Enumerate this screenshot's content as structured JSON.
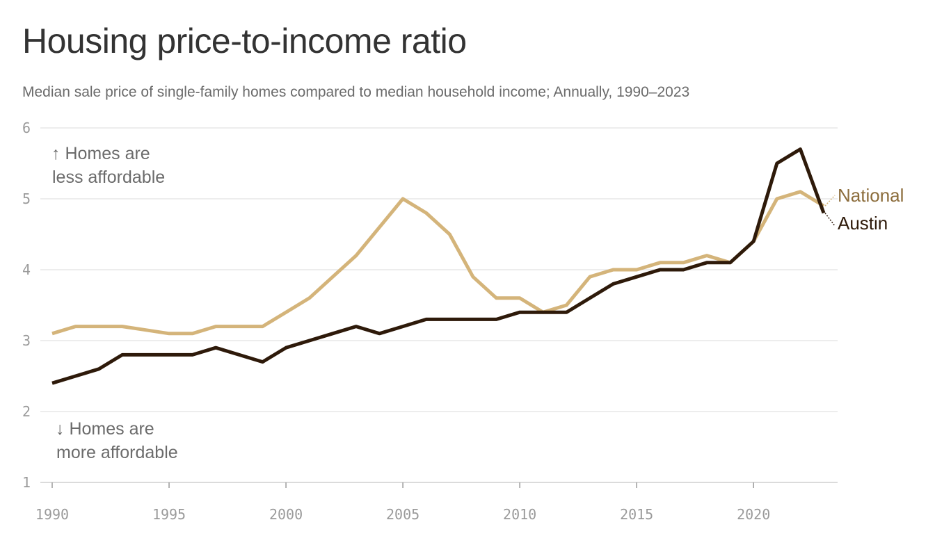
{
  "chart_data": {
    "type": "line",
    "title": "Housing price-to-income ratio",
    "subtitle": "Median sale price of single-family homes compared to median household income; Annually, 1990–2023",
    "xlabel": "",
    "ylabel": "",
    "xlim": [
      1990,
      2023
    ],
    "ylim": [
      1,
      6
    ],
    "yticks": [
      "1",
      "2",
      "3",
      "4",
      "5",
      "6"
    ],
    "xticks": [
      "1990",
      "1995",
      "2000",
      "2005",
      "2010",
      "2015",
      "2020"
    ],
    "grid": true,
    "legend": "direct labels at right end of lines",
    "annotations": {
      "top": [
        "↑ Homes are",
        "less affordable"
      ],
      "bottom": [
        "↓ Homes are",
        "more affordable"
      ]
    },
    "x": [
      1990,
      1991,
      1992,
      1993,
      1994,
      1995,
      1996,
      1997,
      1998,
      1999,
      2000,
      2001,
      2002,
      2003,
      2004,
      2005,
      2006,
      2007,
      2008,
      2009,
      2010,
      2011,
      2012,
      2013,
      2014,
      2015,
      2016,
      2017,
      2018,
      2019,
      2020,
      2021,
      2022,
      2023
    ],
    "series": [
      {
        "name": "National",
        "color": "#d4b47a",
        "label_color": "#8c6d3c",
        "values": [
          3.1,
          3.2,
          3.2,
          3.2,
          3.15,
          3.1,
          3.1,
          3.2,
          3.2,
          3.2,
          3.4,
          3.6,
          3.9,
          4.2,
          4.6,
          5.0,
          4.8,
          4.5,
          3.9,
          3.6,
          3.6,
          3.4,
          3.5,
          3.9,
          4.0,
          4.0,
          4.1,
          4.1,
          4.2,
          4.1,
          4.4,
          5.0,
          5.1,
          4.9
        ]
      },
      {
        "name": "Austin",
        "color": "#2e1a0a",
        "label_color": "#2e1a0a",
        "values": [
          2.4,
          2.5,
          2.6,
          2.8,
          2.8,
          2.8,
          2.8,
          2.9,
          2.8,
          2.7,
          2.9,
          3.0,
          3.1,
          3.2,
          3.1,
          3.2,
          3.3,
          3.3,
          3.3,
          3.3,
          3.4,
          3.4,
          3.4,
          3.6,
          3.8,
          3.9,
          4.0,
          4.0,
          4.1,
          4.1,
          4.4,
          5.5,
          5.7,
          4.8
        ]
      }
    ]
  }
}
